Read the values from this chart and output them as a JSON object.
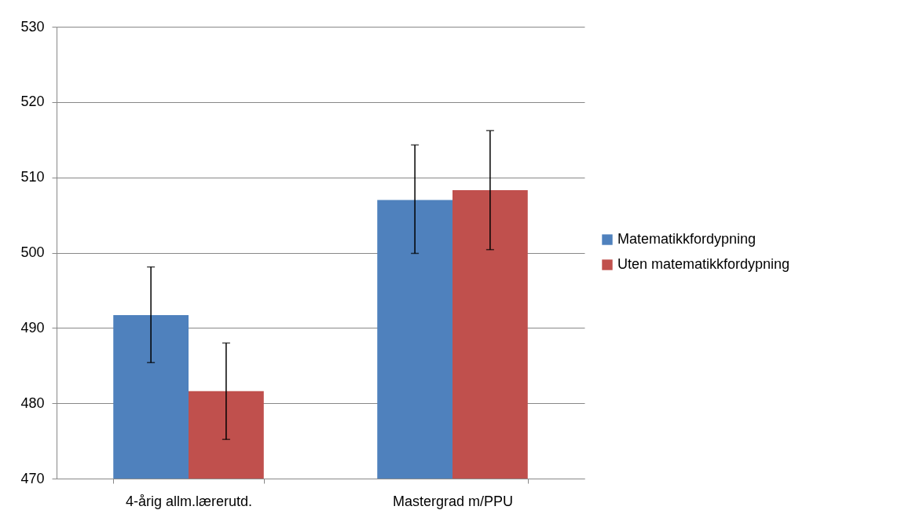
{
  "chart_data": {
    "type": "bar",
    "categories": [
      "4-årig allm.lærerutd.",
      "Mastergrad m/PPU"
    ],
    "series": [
      {
        "name": "Matematikkfordypning",
        "color": "#4f81bd",
        "values": [
          491.7,
          507.0
        ],
        "errors": [
          [
            485.4,
            498.1
          ],
          [
            499.9,
            514.3
          ]
        ]
      },
      {
        "name": "Uten matematikkfordypning",
        "color": "#c0504d",
        "values": [
          481.6,
          508.3
        ],
        "errors": [
          [
            475.2,
            488.0
          ],
          [
            500.4,
            516.2
          ]
        ]
      }
    ],
    "ylim": [
      470,
      530
    ],
    "yticks": [
      470,
      480,
      490,
      500,
      510,
      520,
      530
    ],
    "grid": "y",
    "legend": "right"
  }
}
